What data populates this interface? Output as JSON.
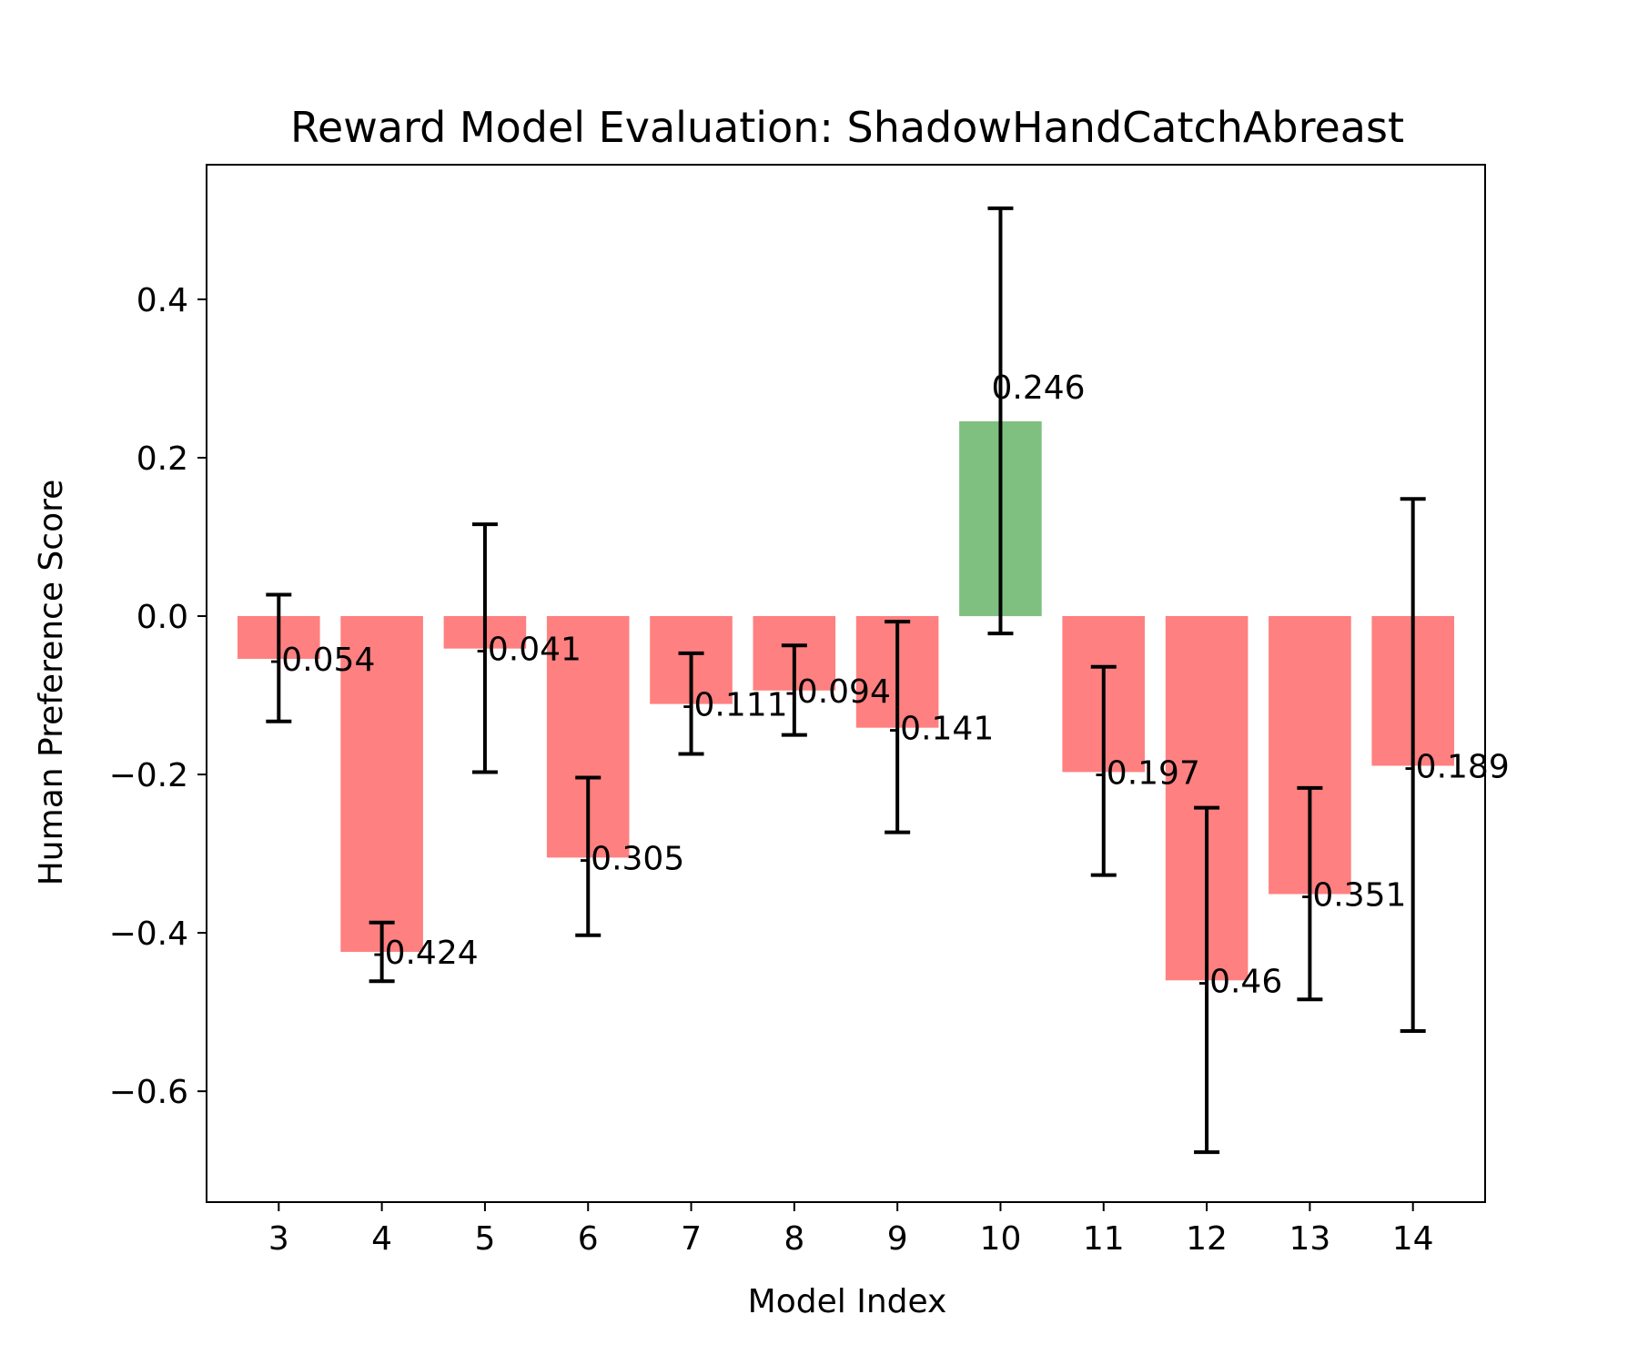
{
  "chart_data": {
    "type": "bar",
    "title": "Reward Model Evaluation: ShadowHandCatchAbreast",
    "xlabel": "Model Index",
    "ylabel": "Human Preference Score",
    "categories": [
      "3",
      "4",
      "5",
      "6",
      "7",
      "8",
      "9",
      "10",
      "11",
      "12",
      "13",
      "14"
    ],
    "values": [
      -0.054,
      -0.424,
      -0.041,
      -0.305,
      -0.111,
      -0.094,
      -0.141,
      0.246,
      -0.197,
      -0.46,
      -0.351,
      -0.189
    ],
    "value_labels": [
      "-0.054",
      "-0.424",
      "-0.041",
      "-0.305",
      "-0.111",
      "-0.094",
      "-0.141",
      "0.246",
      "-0.197",
      "-0.46",
      "-0.351",
      "-0.189"
    ],
    "error_low": [
      -0.133,
      -0.461,
      -0.197,
      -0.403,
      -0.174,
      -0.15,
      -0.273,
      -0.022,
      -0.327,
      -0.677,
      -0.484,
      -0.524
    ],
    "error_high": [
      0.027,
      -0.387,
      0.116,
      -0.204,
      -0.047,
      -0.037,
      -0.007,
      0.515,
      -0.064,
      -0.242,
      -0.217,
      0.148
    ],
    "ylim": [
      -0.74,
      0.57
    ],
    "yticks": [
      0.4,
      0.2,
      0.0,
      -0.2,
      -0.4,
      -0.6
    ],
    "ytick_labels": [
      "0.4",
      "0.2",
      "0.0",
      "−0.2",
      "−0.4",
      "−0.6"
    ],
    "colors": {
      "positive": "#7fbf7f",
      "negative": "#ff8080",
      "errorbar": "#000000"
    },
    "grid": false,
    "legend": "none"
  }
}
